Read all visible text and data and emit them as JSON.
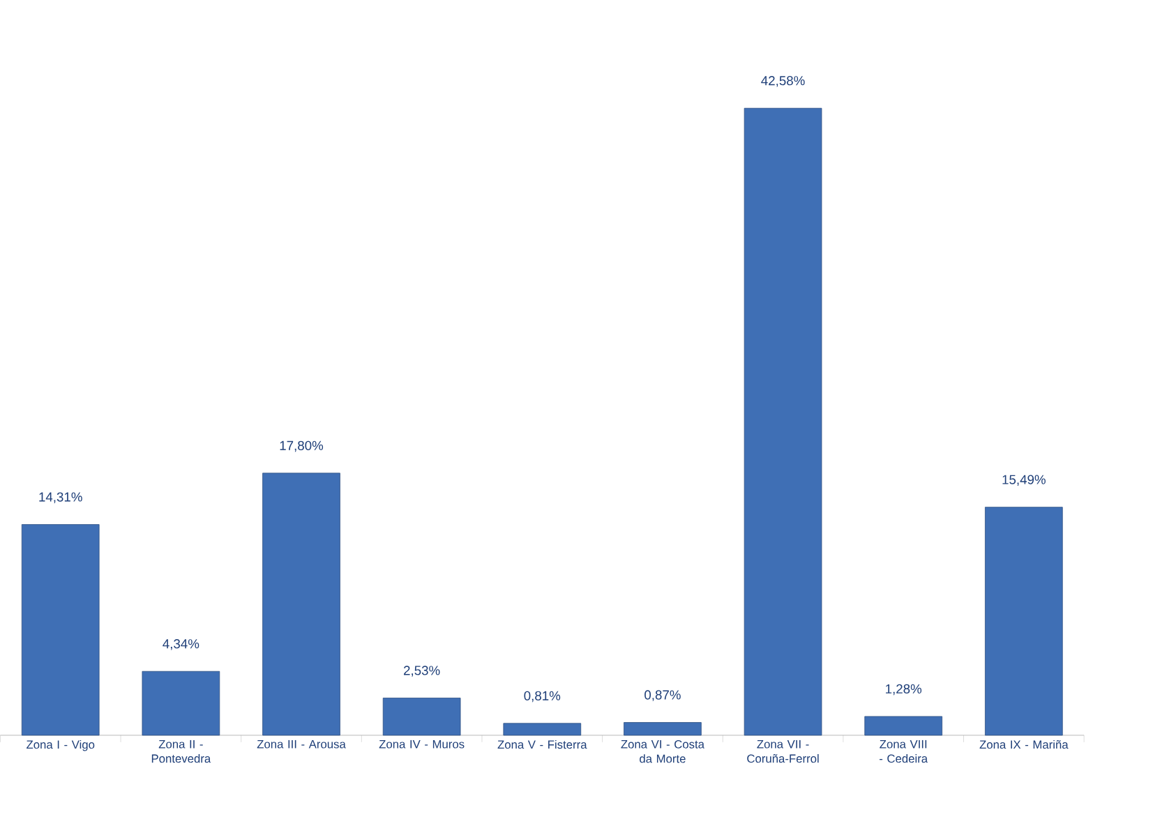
{
  "chart_data": {
    "type": "bar",
    "categories": [
      "Zona I - Vigo",
      "Zona II - Pontevedra",
      "Zona III - Arousa",
      "Zona IV - Muros",
      "Zona V - Fisterra",
      "Zona VI - Costa da Morte",
      "Zona VII - Coruña-Ferrol",
      "Zona VIII - Cedeira",
      "Zona IX - Mariña"
    ],
    "values": [
      14.31,
      4.34,
      17.8,
      2.53,
      0.81,
      0.87,
      42.58,
      1.28,
      15.49
    ],
    "value_labels": [
      "14,31%",
      "4,34%",
      "17,80%",
      "2,53%",
      "0,81%",
      "0,87%",
      "42,58%",
      "1,28%",
      "15,49%"
    ],
    "color": "#3f6fb5"
  }
}
